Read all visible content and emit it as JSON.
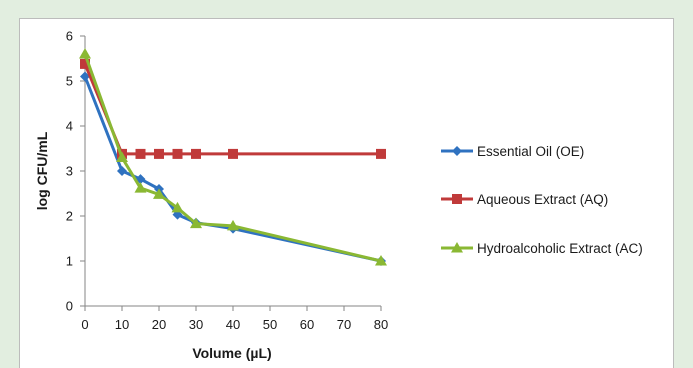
{
  "colors": {
    "background": "#e2eee0",
    "plot_bg": "#ffffff",
    "axis": "#868686",
    "text": "#1a1a1a"
  },
  "chart_data": {
    "type": "line",
    "title": "",
    "xlabel": "Volume (µL)",
    "ylabel": "log CFU/mL",
    "x": [
      0,
      10,
      15,
      20,
      25,
      30,
      40,
      80
    ],
    "xlim": [
      0,
      80
    ],
    "ylim": [
      0,
      6
    ],
    "xticks": [
      "0",
      "10",
      "20",
      "30",
      "40",
      "50",
      "60",
      "70",
      "80"
    ],
    "yticks": [
      "0",
      "1",
      "2",
      "3",
      "4",
      "5",
      "6"
    ],
    "grid": false,
    "legend_position": "right",
    "series": [
      {
        "name": "Essential Oil (OE)",
        "marker": "diamond",
        "color": "#2f72c0",
        "values": [
          5.1,
          3.0,
          2.82,
          2.6,
          2.03,
          1.85,
          1.72,
          1.0
        ]
      },
      {
        "name": "Aqueous Extract (AQ)",
        "marker": "square",
        "color": "#c03a3a",
        "values": [
          5.38,
          3.38,
          3.38,
          3.38,
          3.38,
          3.38,
          3.38,
          3.38
        ]
      },
      {
        "name": "Hydroalcoholic Extract (AC)",
        "marker": "triangle",
        "color": "#8ab833",
        "values": [
          5.6,
          3.3,
          2.62,
          2.48,
          2.18,
          1.83,
          1.78,
          1.0
        ]
      }
    ]
  }
}
